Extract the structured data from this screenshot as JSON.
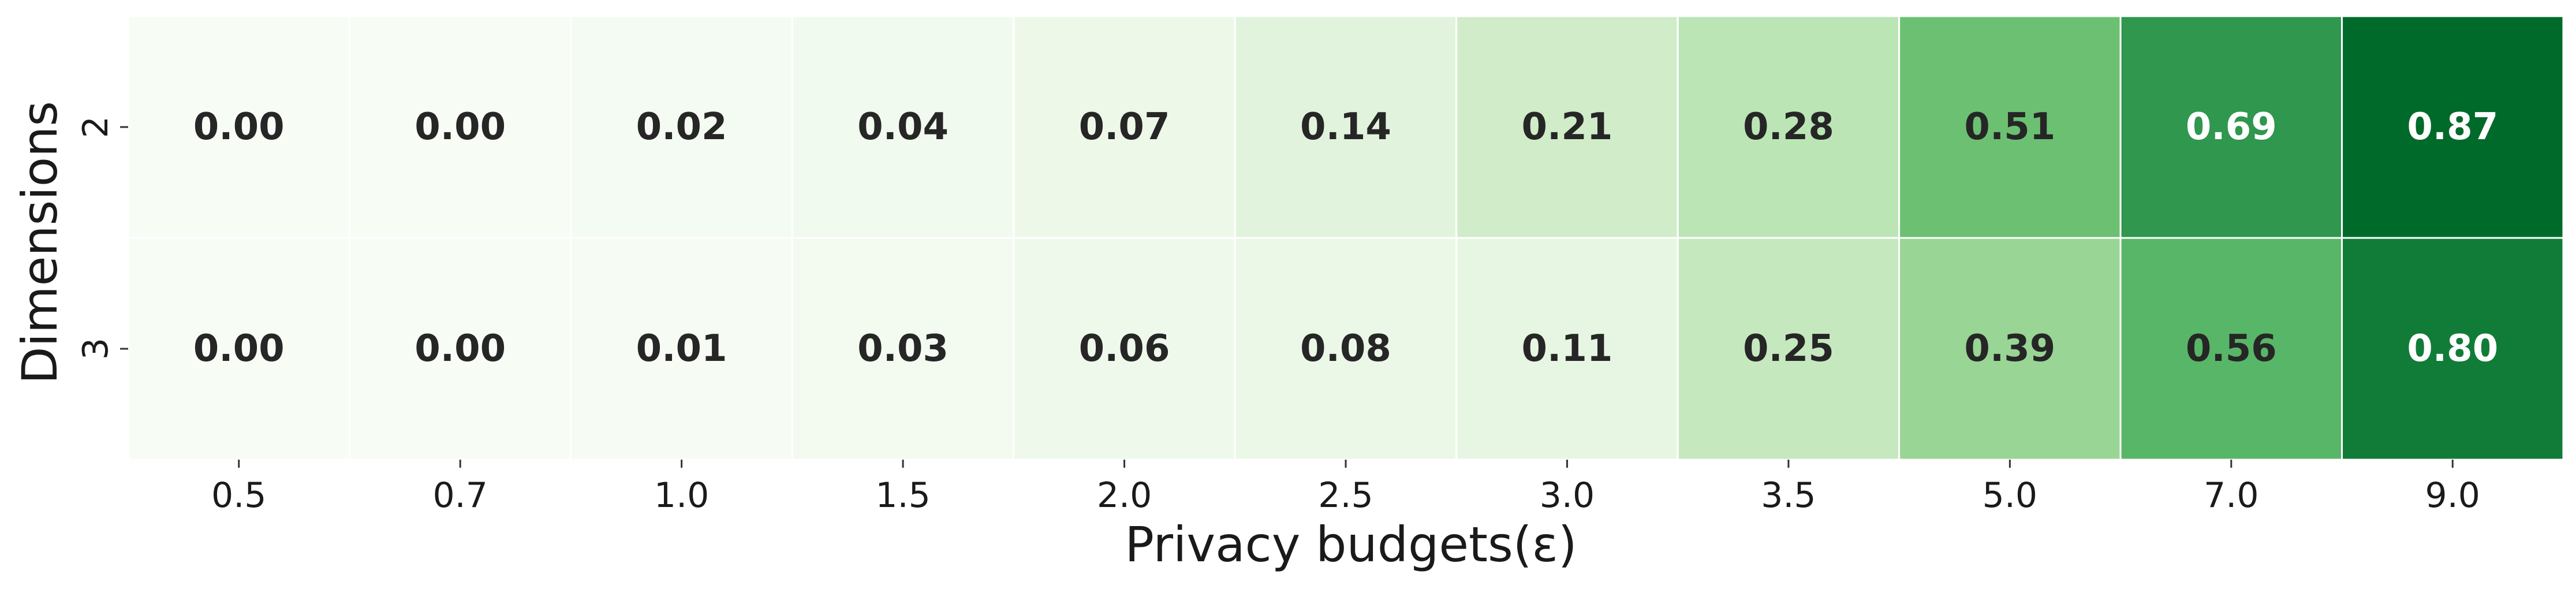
{
  "chart_data": {
    "type": "heatmap",
    "xlabel": "Privacy budgets(ε)",
    "ylabel": "Dimensions",
    "x_categories": [
      "0.5",
      "0.7",
      "1.0",
      "1.5",
      "2.0",
      "2.5",
      "3.0",
      "3.5",
      "5.0",
      "7.0",
      "9.0"
    ],
    "y_categories": [
      "2",
      "3"
    ],
    "values": [
      [
        0.0,
        0.0,
        0.02,
        0.04,
        0.07,
        0.14,
        0.21,
        0.28,
        0.51,
        0.69,
        0.87
      ],
      [
        0.0,
        0.0,
        0.01,
        0.03,
        0.06,
        0.08,
        0.11,
        0.25,
        0.39,
        0.56,
        0.8
      ]
    ],
    "value_format": "0.00",
    "colormap": "Greens",
    "color_range": [
      0.0,
      0.87
    ],
    "colors": {
      "low": "#f7fcf5",
      "high": "#00441b",
      "cell_border": "#ffffff",
      "text_dark": "#262626",
      "text_light": "#ffffff"
    }
  }
}
